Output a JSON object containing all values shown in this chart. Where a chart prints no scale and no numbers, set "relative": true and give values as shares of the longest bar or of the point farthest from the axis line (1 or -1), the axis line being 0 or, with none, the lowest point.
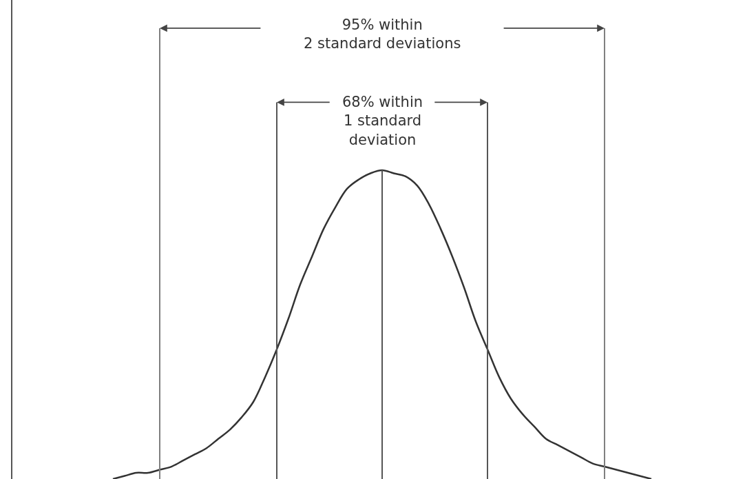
{
  "chart_data": {
    "type": "line",
    "relative": true,
    "legend": false,
    "grid": "x",
    "marker": "none",
    "line_style": "solid",
    "categories": [
      null,
      null,
      null,
      null,
      null,
      null,
      null,
      null,
      null,
      null,
      null,
      null,
      null,
      null,
      null,
      null,
      null,
      null,
      null,
      null,
      null,
      null,
      null,
      null,
      null,
      null,
      null,
      null,
      null,
      null,
      null,
      null,
      null,
      null,
      null,
      null,
      null,
      null,
      null,
      null,
      null,
      null,
      null,
      null,
      null,
      null,
      null
    ],
    "series": [
      {
        "color": "#333333",
        "values": [
          0,
          0.01,
          0.02,
          0.02,
          0.03,
          0.04,
          0.06,
          0.08,
          0.1,
          0.13,
          0.16,
          0.2,
          0.25,
          0.33,
          0.42,
          0.52,
          0.63,
          0.72,
          0.81,
          0.88,
          0.94,
          0.97,
          0.99,
          1,
          0.99,
          0.98,
          0.95,
          0.89,
          0.81,
          0.72,
          0.62,
          0.51,
          0.42,
          0.33,
          0.26,
          0.21,
          0.17,
          0.13,
          0.11,
          0.09,
          0.07,
          0.05,
          0.04,
          0.03,
          0.02,
          0.01,
          0
        ]
      }
    ],
    "annotations": [
      "95% within\n2 standard deviations",
      "68% within\n1 standard\ndeviation"
    ]
  }
}
